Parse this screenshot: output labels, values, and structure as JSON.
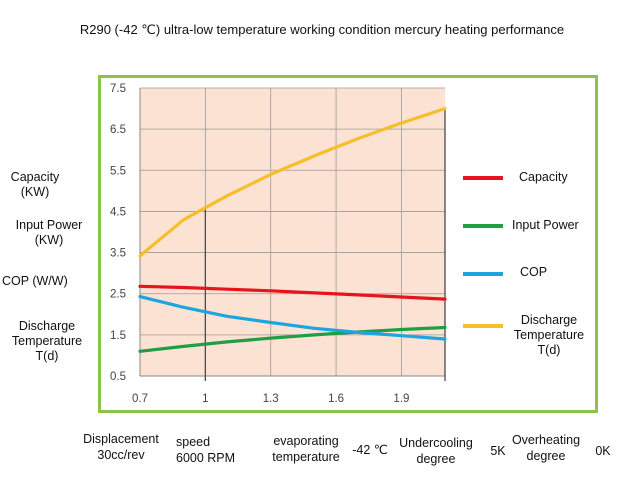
{
  "chart_data": {
    "type": "line",
    "title": "R290 (-42 ℃) ultra-low temperature working condition mercury heating performance",
    "xlabel": "",
    "ylabel": "",
    "xlim": [
      0.7,
      2.1
    ],
    "ylim": [
      0.5,
      7.5
    ],
    "x_ticks": [
      "0.7",
      "1",
      "1.3",
      "1.6",
      "1.9"
    ],
    "x_tick_values": [
      0.7,
      1.0,
      1.3,
      1.6,
      1.9
    ],
    "y_ticks": [
      "0.5",
      "1.5",
      "2.5",
      "3.5",
      "4.5",
      "5.5",
      "6.5",
      "7.5"
    ],
    "y_tick_values": [
      0.5,
      1.5,
      2.5,
      3.5,
      4.5,
      5.5,
      6.5,
      7.5
    ],
    "grid": true,
    "legend_position": "right",
    "vertical_markers": [
      1.0,
      2.1
    ],
    "series": [
      {
        "name": "Capacity",
        "color": "#e8141b",
        "x": [
          0.7,
          0.9,
          1.1,
          1.3,
          1.5,
          1.7,
          1.9,
          2.1
        ],
        "y": [
          2.68,
          2.65,
          2.61,
          2.57,
          2.52,
          2.47,
          2.42,
          2.37
        ]
      },
      {
        "name": "Input Power",
        "color": "#1f9e44",
        "x": [
          0.7,
          0.9,
          1.1,
          1.3,
          1.5,
          1.7,
          1.9,
          2.1
        ],
        "y": [
          1.1,
          1.22,
          1.33,
          1.42,
          1.5,
          1.57,
          1.63,
          1.68
        ]
      },
      {
        "name": "COP",
        "color": "#1ea5e0",
        "x": [
          0.7,
          0.9,
          1.1,
          1.3,
          1.5,
          1.7,
          1.9,
          2.1
        ],
        "y": [
          2.43,
          2.17,
          1.95,
          1.8,
          1.66,
          1.56,
          1.48,
          1.4
        ]
      },
      {
        "name": "Discharge Temperature T(d)",
        "color": "#f5bf2a",
        "x": [
          0.7,
          0.9,
          1.1,
          1.3,
          1.5,
          1.7,
          1.9,
          2.1
        ],
        "y": [
          3.42,
          4.3,
          4.88,
          5.4,
          5.85,
          6.27,
          6.65,
          7.0
        ]
      }
    ]
  },
  "y_axis_labels": {
    "capacity": [
      "Capacity",
      "(KW)"
    ],
    "input_power": [
      "Input Power",
      "(KW)"
    ],
    "cop": [
      "COP (W/W)"
    ],
    "discharge": [
      "Discharge",
      "Temperature",
      "T(d)"
    ]
  },
  "legend": [
    {
      "label": [
        "Capacity"
      ],
      "color": "#e8141b"
    },
    {
      "label": [
        "Input Power"
      ],
      "color": "#1f9e44"
    },
    {
      "label": [
        "COP"
      ],
      "color": "#1ea5e0"
    },
    {
      "label": [
        "Discharge",
        "Temperature",
        "T(d)"
      ],
      "color": "#f5bf2a"
    }
  ],
  "footer": {
    "displacement": [
      "Displacement",
      "30cc/rev"
    ],
    "speed": [
      "speed",
      "6000 RPM"
    ],
    "evaporating": [
      "evaporating",
      "temperature"
    ],
    "evaporating_value": "-42 ℃",
    "undercooling": [
      "Undercooling",
      "degree"
    ],
    "undercooling_value": "5K",
    "overheating": [
      "Overheating",
      "degree"
    ],
    "overheating_value": "0K"
  },
  "colors": {
    "plot_background": "#fbe2d3",
    "frame": "#8dc34a",
    "grid": "#9a9a9a"
  }
}
